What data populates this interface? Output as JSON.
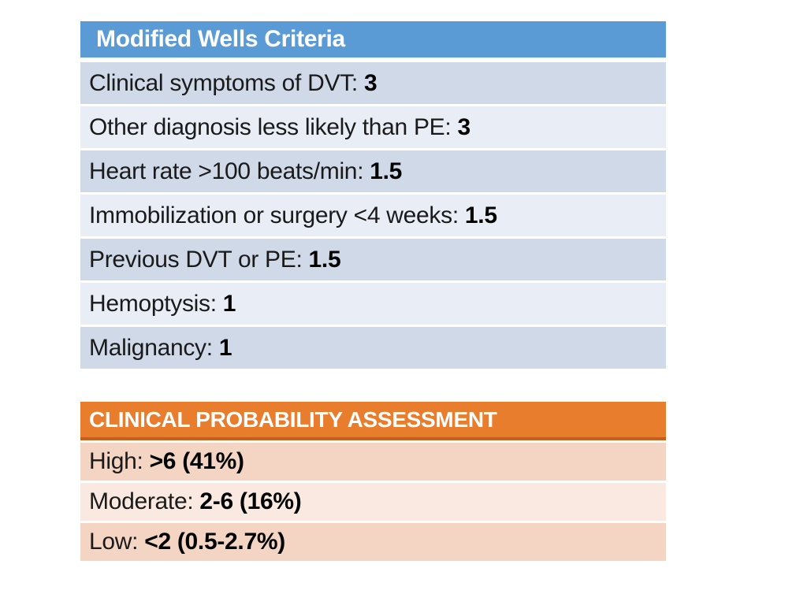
{
  "slide": {
    "background": "#ffffff"
  },
  "wells_table": {
    "title": "Modified Wells Criteria",
    "colors": {
      "header_bg": "#5b9bd5",
      "header_text": "#ffffff",
      "row_dark": "#cfd9e8",
      "row_light": "#e9eef6",
      "row_text": "#1a1a1a",
      "value_text": "#000000"
    },
    "rows": [
      {
        "label": "Clinical symptoms of DVT:",
        "value": "3",
        "shade": "dark"
      },
      {
        "label": "Other diagnosis less likely than PE:",
        "value": "3",
        "shade": "light"
      },
      {
        "label": "Heart rate >100 beats/min:",
        "value": "1.5",
        "shade": "dark"
      },
      {
        "label": "Immobilization or surgery <4 weeks:",
        "value": "1.5",
        "shade": "light"
      },
      {
        "label": "Previous DVT or PE:",
        "value": "1.5",
        "shade": "dark"
      },
      {
        "label": "Hemoptysis:",
        "value": "1",
        "shade": "light"
      },
      {
        "label": "Malignancy:",
        "value": "1",
        "shade": "dark"
      }
    ]
  },
  "assessment_table": {
    "title": "CLINICAL PROBABILITY ASSESSMENT",
    "colors": {
      "header_bg": "#e87d2e",
      "header_border": "#c45f20",
      "header_text": "#ffffff",
      "row_dark": "#f4d4c2",
      "row_light": "#fae9e0",
      "row_text": "#1a1a1a",
      "value_text": "#000000"
    },
    "rows": [
      {
        "label": "High:",
        "value": ">6 (41%)",
        "shade": "dark"
      },
      {
        "label": "Moderate:",
        "value": "2-6 (16%)",
        "shade": "light"
      },
      {
        "label": "Low:",
        "value": "<2 (0.5-2.7%)",
        "shade": "dark"
      }
    ]
  }
}
